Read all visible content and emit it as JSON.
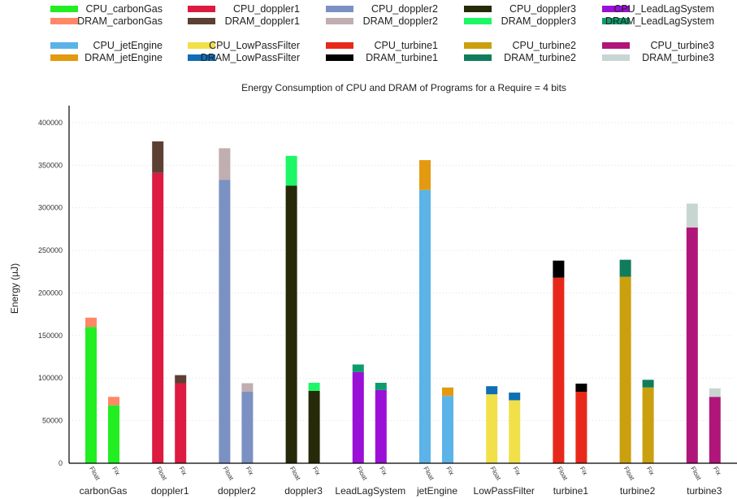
{
  "chart_data": {
    "type": "bar",
    "stacked": true,
    "title": "Energy Consumption of CPU and DRAM of Programs for a Require = 4 bits",
    "xlabel": "",
    "ylabel": "Energy (µJ)",
    "ylim": [
      0,
      420000
    ],
    "yticks": [
      0,
      50000,
      100000,
      150000,
      200000,
      250000,
      300000,
      350000,
      400000
    ],
    "ytick_labels": [
      "0",
      "50000",
      "100000",
      "150000",
      "200000",
      "250000",
      "300000",
      "350000",
      "400000"
    ],
    "grid": "horizontal dotted",
    "legend_position": "top",
    "bar_labels": [
      "Float",
      "Fix"
    ],
    "groups": [
      {
        "name": "carbonGas",
        "cpu_label": "CPU_carbonGas",
        "dram_label": "DRAM_carbonGas",
        "cpu_color": "#22ee22",
        "dram_color": "#ff8866",
        "values": {
          "Float": {
            "cpu": 160000,
            "dram": 11000
          },
          "Fix": {
            "cpu": 68000,
            "dram": 10000
          }
        }
      },
      {
        "name": "doppler1",
        "cpu_label": "CPU_doppler1",
        "dram_label": "DRAM_doppler1",
        "cpu_color": "#dd1a40",
        "dram_color": "#5c4033",
        "values": {
          "Float": {
            "cpu": 341000,
            "dram": 37000
          },
          "Fix": {
            "cpu": 94000,
            "dram": 9500
          }
        }
      },
      {
        "name": "doppler2",
        "cpu_label": "CPU_doppler2",
        "dram_label": "DRAM_doppler2",
        "cpu_color": "#7b91c3",
        "dram_color": "#c0aeb1",
        "values": {
          "Float": {
            "cpu": 333000,
            "dram": 37000
          },
          "Fix": {
            "cpu": 84000,
            "dram": 10000
          }
        }
      },
      {
        "name": "doppler3",
        "cpu_label": "CPU_doppler3",
        "dram_label": "DRAM_doppler3",
        "cpu_color": "#262a08",
        "dram_color": "#1df766",
        "values": {
          "Float": {
            "cpu": 326000,
            "dram": 35000
          },
          "Fix": {
            "cpu": 85000,
            "dram": 9500
          }
        }
      },
      {
        "name": "LeadLagSystem",
        "cpu_label": "CPU_LeadLagSystem",
        "dram_label": "DRAM_LeadLagSystem",
        "cpu_color": "#9b10d6",
        "dram_color": "#0d9c6e",
        "values": {
          "Float": {
            "cpu": 107000,
            "dram": 9000
          },
          "Fix": {
            "cpu": 86000,
            "dram": 8500
          }
        }
      },
      {
        "name": "jetEngine",
        "cpu_label": "CPU_jetEngine",
        "dram_label": "DRAM_jetEngine",
        "cpu_color": "#5bb3e8",
        "dram_color": "#e39a10",
        "values": {
          "Float": {
            "cpu": 321000,
            "dram": 35000
          },
          "Fix": {
            "cpu": 79000,
            "dram": 10000
          }
        }
      },
      {
        "name": "LowPassFilter",
        "cpu_label": "CPU_LowPassFilter",
        "dram_label": "DRAM_LowPassFilter",
        "cpu_color": "#f1e04a",
        "dram_color": "#0f6eb5",
        "values": {
          "Float": {
            "cpu": 81000,
            "dram": 9500
          },
          "Fix": {
            "cpu": 74000,
            "dram": 9000
          }
        }
      },
      {
        "name": "turbine1",
        "cpu_label": "CPU_turbine1",
        "dram_label": "DRAM_turbine1",
        "cpu_color": "#e8281a",
        "dram_color": "#000000",
        "values": {
          "Float": {
            "cpu": 218000,
            "dram": 20000
          },
          "Fix": {
            "cpu": 84000,
            "dram": 9500
          }
        }
      },
      {
        "name": "turbine2",
        "cpu_label": "CPU_turbine2",
        "dram_label": "DRAM_turbine2",
        "cpu_color": "#cba00e",
        "dram_color": "#117c5b",
        "values": {
          "Float": {
            "cpu": 219000,
            "dram": 20000
          },
          "Fix": {
            "cpu": 89000,
            "dram": 9000
          }
        }
      },
      {
        "name": "turbine3",
        "cpu_label": "CPU_turbine3",
        "dram_label": "DRAM_turbine3",
        "cpu_color": "#b0167a",
        "dram_color": "#c8d6d2",
        "values": {
          "Float": {
            "cpu": 277000,
            "dram": 28000
          },
          "Fix": {
            "cpu": 78000,
            "dram": 10000
          }
        }
      }
    ]
  }
}
